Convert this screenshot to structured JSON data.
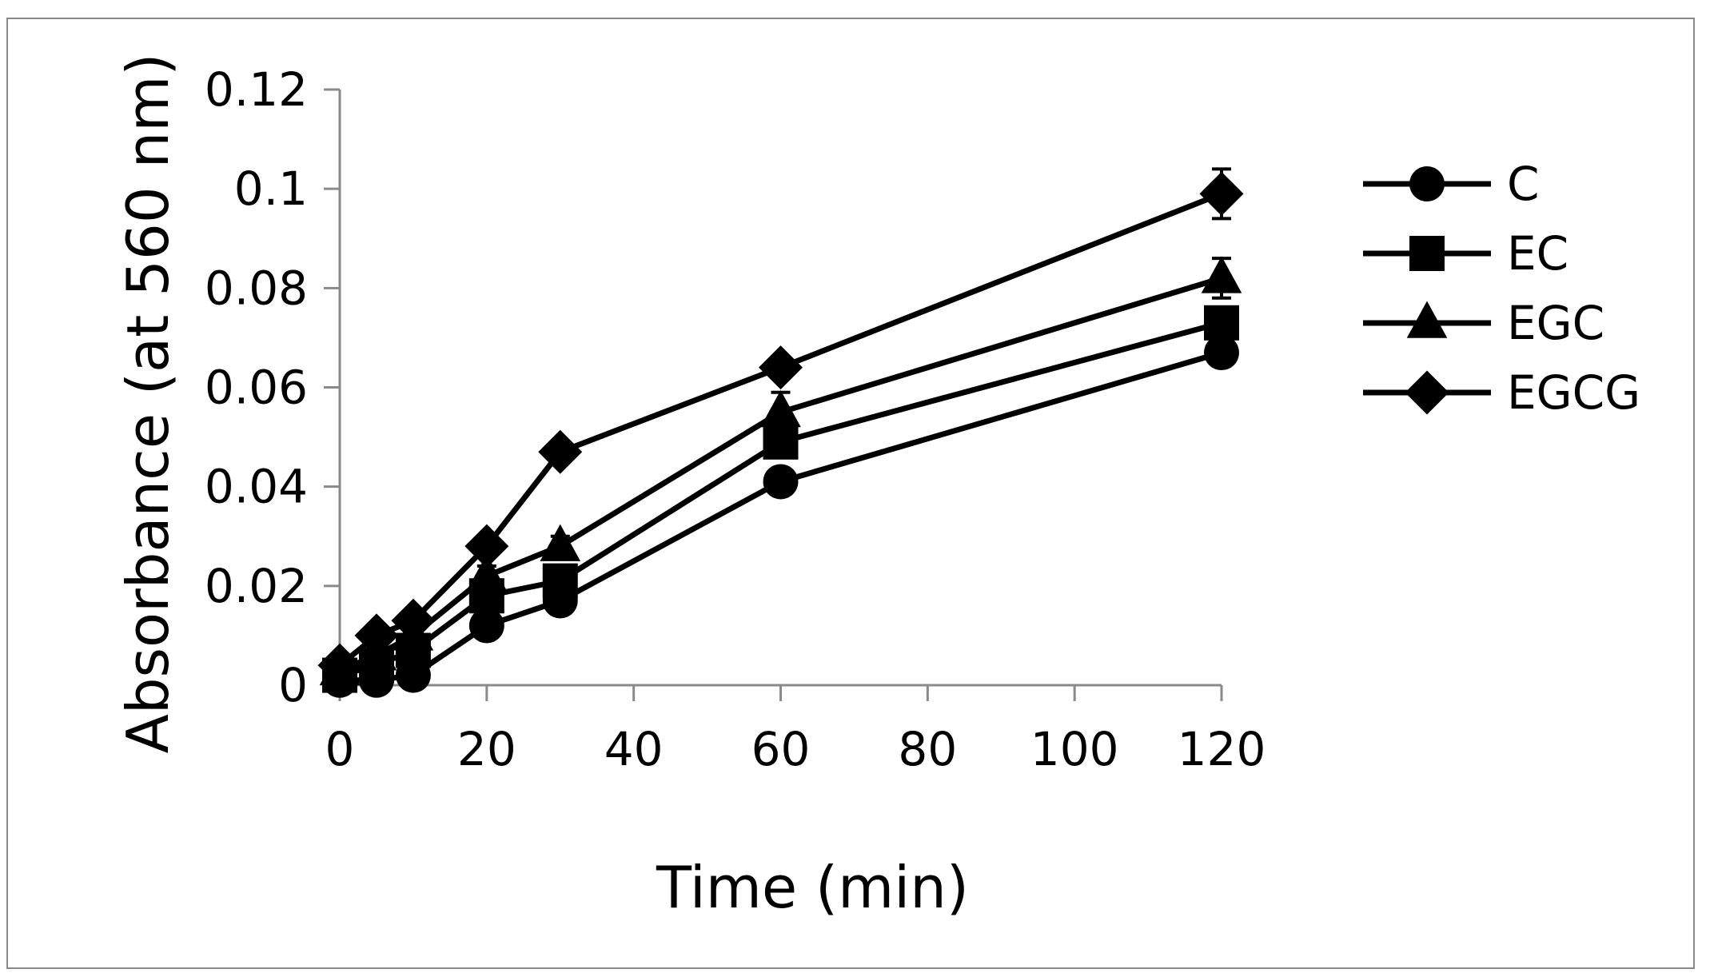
{
  "chart_data": {
    "type": "line",
    "xlabel": "Time (min)",
    "ylabel": "Absorbance (at 560 nm)",
    "xlim": [
      0,
      120
    ],
    "ylim": [
      0,
      0.12
    ],
    "x_ticks": [
      0,
      20,
      40,
      60,
      80,
      100,
      120
    ],
    "y_ticks": [
      0,
      0.02,
      0.04,
      0.06,
      0.08,
      0.1,
      0.12
    ],
    "y_tick_labels": [
      "0",
      "0.02",
      "0.04",
      "0.06",
      "0.08",
      "0.1",
      "0.12"
    ],
    "x": [
      0,
      5,
      10,
      20,
      30,
      60,
      120
    ],
    "grid": false,
    "legend_position": "right",
    "series": [
      {
        "name": "C",
        "marker": "circle",
        "values": [
          0.001,
          0.001,
          0.002,
          0.012,
          0.017,
          0.041,
          0.067
        ],
        "errors": [
          0.0005,
          0.0005,
          0.001,
          0.001,
          0.001,
          0.001,
          0.002
        ]
      },
      {
        "name": "EC",
        "marker": "square",
        "values": [
          0.002,
          0.004,
          0.007,
          0.018,
          0.021,
          0.049,
          0.073
        ],
        "errors": [
          0.0005,
          0.001,
          0.001,
          0.002,
          0.002,
          0.002,
          0.003
        ]
      },
      {
        "name": "EGC",
        "marker": "triangle",
        "values": [
          0.003,
          0.006,
          0.01,
          0.022,
          0.028,
          0.055,
          0.082
        ],
        "errors": [
          0.001,
          0.001,
          0.001,
          0.002,
          0.002,
          0.004,
          0.004
        ]
      },
      {
        "name": "EGCG",
        "marker": "diamond",
        "values": [
          0.004,
          0.01,
          0.013,
          0.028,
          0.047,
          0.064,
          0.099
        ],
        "errors": [
          0.001,
          0.001,
          0.001,
          0.001,
          0.001,
          0.002,
          0.005
        ]
      }
    ],
    "colors": {
      "line": "#000000",
      "frame": "#8a8a8a",
      "axis": "#8a8a8a"
    }
  }
}
